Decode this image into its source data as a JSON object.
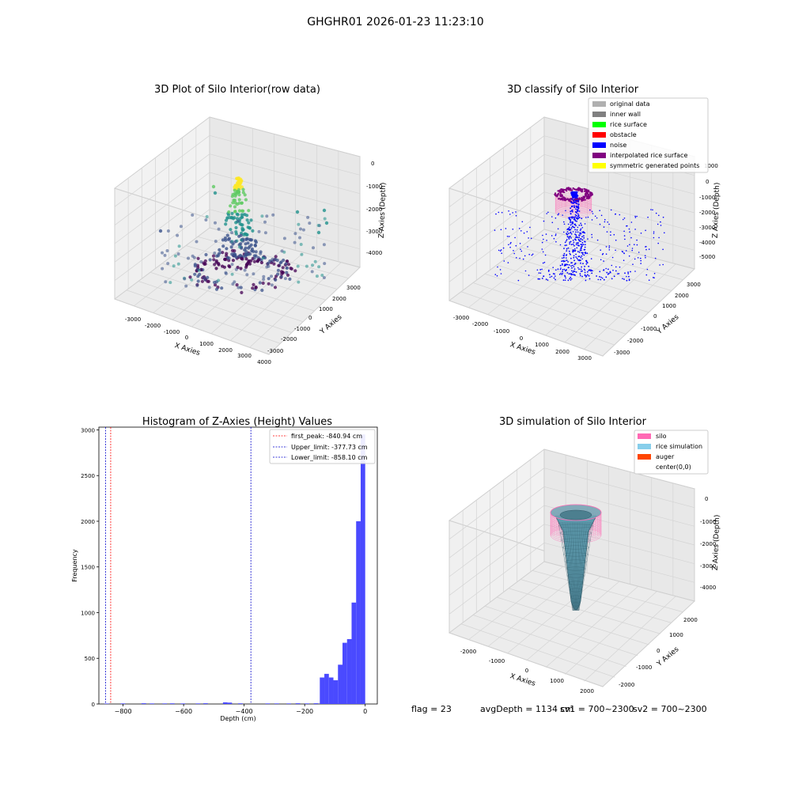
{
  "suptitle": "GHGHR01 2026-01-23 11:23:10",
  "chart_data": [
    {
      "type": "scatter",
      "projection": "3d",
      "title": "3D Plot of Silo Interior(row data)",
      "xlabel": "X Axies",
      "ylabel": "Y Axies",
      "zlabel": "Z Axies (Depth)",
      "xticks": [
        "-3000",
        "-2000",
        "-1000",
        "0",
        "1000",
        "2000",
        "3000",
        "4000"
      ],
      "yticks": [
        "-3000",
        "-2000",
        "-1000",
        "0",
        "1000",
        "2000",
        "3000"
      ],
      "zticks": [
        "0",
        "-1000",
        "-2000",
        "-3000",
        "-4000"
      ],
      "xlim": [
        -3500,
        4000
      ],
      "ylim": [
        -3500,
        3500
      ],
      "zlim": [
        -4500,
        0
      ],
      "colormap": "viridis",
      "grid": true
    },
    {
      "type": "scatter",
      "projection": "3d",
      "title": "3D classify of Silo Interior",
      "xlabel": "X Axies",
      "ylabel": "Y Axies",
      "zlabel": "Z Axies (Depth)",
      "xticks": [
        "-3000",
        "-2000",
        "-1000",
        "0",
        "1000",
        "2000",
        "3000"
      ],
      "yticks": [
        "-3000",
        "-2000",
        "-1000",
        "0",
        "1000",
        "2000",
        "3000"
      ],
      "zticks": [
        "1000",
        "0",
        "-1000",
        "-2000",
        "-3000",
        "-4000",
        "-5000"
      ],
      "legend": [
        {
          "label": "original data",
          "color": "#b0b0b0"
        },
        {
          "label": "inner wall",
          "color": "#808080"
        },
        {
          "label": "rice surface",
          "color": "#00ff00"
        },
        {
          "label": "obstacle",
          "color": "#ff0000"
        },
        {
          "label": "noise",
          "color": "#0000ff"
        },
        {
          "label": "interpolated rice surface",
          "color": "#800080"
        },
        {
          "label": "symmetric generated points",
          "color": "#ffff00"
        }
      ],
      "legend_position": "top-right",
      "grid": true
    },
    {
      "type": "bar",
      "title": "Histogram of Z-Axies (Height) Values",
      "xlabel": "Depth (cm)",
      "ylabel": "Frequency",
      "xlim": [
        -880,
        40
      ],
      "ylim": [
        0,
        3030
      ],
      "xticks": [
        -800,
        -600,
        -400,
        -200,
        0
      ],
      "yticks": [
        0,
        500,
        1000,
        1500,
        2000,
        2500,
        3000
      ],
      "bin_width": 15,
      "bins": [
        {
          "x": -862,
          "count": 5
        },
        {
          "x": -808,
          "count": 6
        },
        {
          "x": -739,
          "count": 8
        },
        {
          "x": -712,
          "count": 6
        },
        {
          "x": -670,
          "count": 6
        },
        {
          "x": -645,
          "count": 7
        },
        {
          "x": -610,
          "count": 6
        },
        {
          "x": -560,
          "count": 6
        },
        {
          "x": -535,
          "count": 8
        },
        {
          "x": -470,
          "count": 18
        },
        {
          "x": -455,
          "count": 15
        },
        {
          "x": -420,
          "count": 7
        },
        {
          "x": -330,
          "count": 6
        },
        {
          "x": -300,
          "count": 6
        },
        {
          "x": -260,
          "count": 6
        },
        {
          "x": -230,
          "count": 8
        },
        {
          "x": -200,
          "count": 6
        },
        {
          "x": -170,
          "count": 8
        },
        {
          "x": -150,
          "count": 290
        },
        {
          "x": -135,
          "count": 330
        },
        {
          "x": -120,
          "count": 290
        },
        {
          "x": -105,
          "count": 260
        },
        {
          "x": -90,
          "count": 430
        },
        {
          "x": -75,
          "count": 670
        },
        {
          "x": -60,
          "count": 710
        },
        {
          "x": -45,
          "count": 1110
        },
        {
          "x": -30,
          "count": 2000
        },
        {
          "x": -15,
          "count": 2950
        }
      ],
      "bar_color": "#4a4aff",
      "vlines": [
        {
          "label": "first_peak: -840.94 cm",
          "x": -840.94,
          "color": "#ff0000"
        },
        {
          "label": "Upper_limit: -377.73 cm",
          "x": -377.73,
          "color": "#0000cc"
        },
        {
          "label": "Lower_limit: -858.10 cm",
          "x": -858.1,
          "color": "#0000cc"
        }
      ],
      "legend_position": "top-right",
      "grid": false
    },
    {
      "type": "surface",
      "projection": "3d",
      "title": "3D simulation of Silo Interior",
      "xlabel": "X Axies",
      "ylabel": "Y Axies",
      "zlabel": "Z Axies (Depth)",
      "xticks": [
        "-2000",
        "-1000",
        "0",
        "1000",
        "2000"
      ],
      "yticks": [
        "-2000",
        "-1000",
        "0",
        "1000",
        "2000"
      ],
      "zticks": [
        "0",
        "-1000",
        "-2000",
        "-3000",
        "-4000"
      ],
      "legend": [
        {
          "label": "silo",
          "color": "#ff69b4"
        },
        {
          "label": "rice simulation",
          "color": "#87ceeb"
        },
        {
          "label": "auger",
          "color": "#ff4500"
        },
        {
          "label": "center(0,0)",
          "color": "#ffffff"
        }
      ],
      "legend_position": "top-right",
      "grid": true
    }
  ],
  "status": {
    "flag": "flag = 23",
    "avg": "avgDepth = 1134 cm",
    "sv1": "sv1 = 700~2300",
    "sv2": "sv2 = 700~2300"
  }
}
